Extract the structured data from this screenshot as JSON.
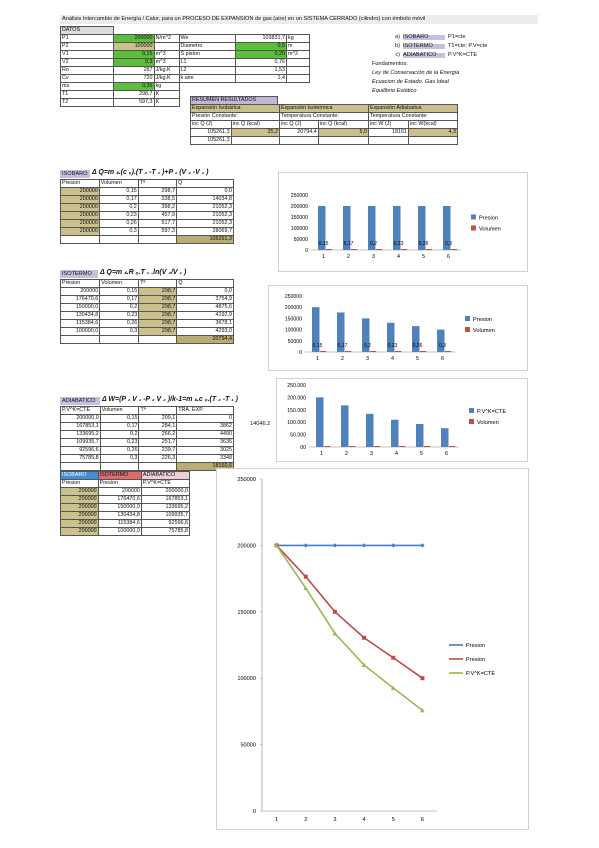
{
  "title": "Análisis Intercambio de Energía / Calor, para un PROCESO DE EXPANSION de gas (aire) en un SISTEMA CERRADO (cilindro) con émbolo móvil",
  "datos": {
    "label": "DATOS",
    "rows": [
      {
        "name": "P1",
        "value": "200000",
        "unit": "N/m^2",
        "name2": "We",
        "value2": "103831,7",
        "unit2": "kg"
      },
      {
        "name": "P2",
        "value": "100000",
        "unit": "",
        "name2": "Diametro",
        "value2": "0,5",
        "unit2": "m"
      },
      {
        "name": "V1",
        "value": "0,15",
        "unit": "m^3",
        "name2": "S piston",
        "value2": "0,20",
        "unit2": "m^2"
      },
      {
        "name": "V2",
        "value": "0,3",
        "unit": "m^3",
        "name2": "L1",
        "value2": "0,76",
        "unit2": ""
      },
      {
        "name": "Ro",
        "value": "287",
        "unit": "J/kg.K",
        "name2": "L2",
        "value2": "1,53",
        "unit2": ""
      },
      {
        "name": "Cv",
        "value": "720",
        "unit": "J/kg.K",
        "name2": "k aire",
        "value2": "1,4",
        "unit2": ""
      },
      {
        "name": "ms",
        "value": "0,35",
        "unit": "kg",
        "name2": "",
        "value2": "",
        "unit2": ""
      },
      {
        "name": "T1",
        "value": "298,7",
        "unit": "K",
        "name2": "",
        "value2": "",
        "unit2": ""
      },
      {
        "name": "T2",
        "value": "597,3",
        "unit": "K",
        "name2": "",
        "value2": "",
        "unit2": ""
      }
    ]
  },
  "legend_right": {
    "a_letter": "a)",
    "a_label": "ISOBARO",
    "a_desc": "P1=cte",
    "b_letter": "b)",
    "b_label": "ISOTERMO",
    "b_desc": "T1=cte; P.V=cte",
    "c_letter": "c)",
    "c_label": "ADIABATICO",
    "c_desc": "P.V^K=CTE",
    "fund": "Fundamentos:",
    "f1": "Ley de Conservación de la Energía",
    "f2": "Ecuacion de Estado, Gas Ideal",
    "f3": "Equilibrio Estático"
  },
  "resumen": {
    "label": "RESUMEN RESULTADOS",
    "h1": "Expansión Isobárica",
    "h2": "Expansión Isotermica",
    "h3": "Expansión Adiabatica",
    "s1": "Presión Constante:",
    "s2": "Temperatura Constante:",
    "s3": "Temperatura Constante:",
    "c1": "inc Q (J)",
    "c2": "inc Q (kcal)",
    "c3": "inc Q (J)",
    "c4": "inc Q (kcal)",
    "c5": "inc W (J)",
    "c6": "inc W(kcal)",
    "v1": "105261,3",
    "v2": "25,2",
    "v3": "20794,4",
    "v4": "5,0",
    "v5": "18161",
    "v6": "4,3",
    "extra": "105261,3"
  },
  "isobaro": {
    "tag": "ISOBARO",
    "formula": "Δ Q=m ₛ.(c ᵥ).(T ₂ -T ₁ )+P ₁ (V ₂ -V ₁ )",
    "headers": [
      "Presion",
      "Volumen",
      "Tª",
      "Q"
    ],
    "rows": [
      [
        "200000",
        "0,15",
        "298,7",
        "0,0"
      ],
      [
        "200000",
        "0,17",
        "338,5",
        "14034,8"
      ],
      [
        "200000",
        "0,2",
        "398,2",
        "21052,3"
      ],
      [
        "200000",
        "0,23",
        "457,9",
        "21052,3"
      ],
      [
        "200000",
        "0,26",
        "517,7",
        "21052,3"
      ],
      [
        "200000",
        "0,3",
        "597,3",
        "28069,7"
      ]
    ],
    "total": "105261,3"
  },
  "isotermo": {
    "tag": "ISOTERMO",
    "formula": "Δ Q=m ₛ.R ₒ.T ₁ .ln(V ₂/V ₁ )",
    "headers": [
      "Presion",
      "Volumen",
      "Tª",
      "Q"
    ],
    "rows": [
      [
        "200000",
        "0,15",
        "298,7",
        "0,0"
      ],
      [
        "176470,6",
        "0,17",
        "298,7",
        "3754,9"
      ],
      [
        "150000,0",
        "0,2",
        "298,7",
        "4875,6"
      ],
      [
        "130434,8",
        "0,23",
        "298,7",
        "4192,9"
      ],
      [
        "115384,6",
        "0,26",
        "298,7",
        "3678,1"
      ],
      [
        "100000,0",
        "0,3",
        "298,7",
        "4293,0"
      ]
    ],
    "total": "20794,4"
  },
  "adiabatico": {
    "tag": "ADIABATICO",
    "formula": "Δ W=(P ₁ V ₁ -P ₂ V ₂ )/k-1=m ₛ.c ᵥ.(T ₂ -T ₁ )",
    "headers": [
      "P.V^K=CTE",
      "Volumen",
      "Tª",
      "TRA. EXP."
    ],
    "rows": [
      [
        "200000,0",
        "0,15",
        "209,1",
        "0"
      ],
      [
        "167853,1",
        "0,17",
        "284,1",
        "3862"
      ],
      [
        "133695,2",
        "0,2",
        "266,2",
        "4490"
      ],
      [
        "109935,7",
        "0,23",
        "251,7",
        "3635"
      ],
      [
        "92596,6",
        "0,26",
        "239,7",
        "3025"
      ],
      [
        "75785,8",
        "0,3",
        "226,3",
        "3348"
      ]
    ],
    "total": "18160,6",
    "side": "14046,2"
  },
  "comparison": {
    "h1": "ISOBARO",
    "h2": "ISOTERMO",
    "h3": "ADIABATICO",
    "s1": "Presion",
    "s2": "Presion",
    "s3": "P.V^K=CTE",
    "rows": [
      [
        "200000",
        "200000",
        "200000,0"
      ],
      [
        "200000",
        "176470,6",
        "167853,1"
      ],
      [
        "200000",
        "150000,0",
        "133695,2"
      ],
      [
        "200000",
        "130434,8",
        "109935,7"
      ],
      [
        "200000",
        "115384,6",
        "92596,6"
      ],
      [
        "200000",
        "100000,0",
        "75785,8"
      ]
    ]
  },
  "chart_data": [
    {
      "type": "bar",
      "categories": [
        "1",
        "2",
        "3",
        "4",
        "5",
        "6"
      ],
      "series": [
        {
          "name": "Presion",
          "values": [
            200000,
            200000,
            200000,
            200000,
            200000,
            200000
          ]
        },
        {
          "name": "Volumen",
          "values": [
            0.15,
            0.17,
            0.2,
            0.23,
            0.26,
            0.3
          ]
        }
      ],
      "data_labels": [
        "0,15",
        "0,17",
        "0,2",
        "0,23",
        "0,26",
        "0,3"
      ],
      "yticks": [
        "250000",
        "200000",
        "150000",
        "100000",
        "50000",
        "0"
      ],
      "ylim": [
        0,
        250000
      ],
      "legend": "right"
    },
    {
      "type": "bar",
      "categories": [
        "1",
        "2",
        "3",
        "4",
        "5",
        "6"
      ],
      "series": [
        {
          "name": "Presion",
          "values": [
            200000,
            176470.6,
            150000,
            130434.8,
            115384.6,
            100000
          ]
        },
        {
          "name": "Volumen",
          "values": [
            0.15,
            0.17,
            0.2,
            0.23,
            0.26,
            0.3
          ]
        }
      ],
      "data_labels": [
        "0,15",
        "0,17",
        "0,2",
        "0,23",
        "0,26",
        "0,3"
      ],
      "yticks": [
        "250000",
        "200000",
        "150000",
        "100000",
        "50000",
        "0"
      ],
      "ylim": [
        0,
        250000
      ],
      "legend": "right"
    },
    {
      "type": "bar",
      "categories": [
        "1",
        "2",
        "3",
        "4",
        "5",
        "6"
      ],
      "series": [
        {
          "name": "P.V^K=CTE",
          "values": [
            200000,
            167853.1,
            133695.2,
            109935.7,
            92596.6,
            75785.8
          ]
        },
        {
          "name": "Volumen",
          "values": [
            0.15,
            0.17,
            0.2,
            0.23,
            0.26,
            0.3
          ]
        }
      ],
      "yticks": [
        "250.000",
        "200.000",
        "150.000",
        "100.000",
        "50.000",
        "00"
      ],
      "ylim": [
        0,
        250000
      ],
      "legend": "right"
    },
    {
      "type": "line",
      "categories": [
        "1",
        "2",
        "3",
        "4",
        "5",
        "6"
      ],
      "series": [
        {
          "name": "Presion",
          "values": [
            200000,
            200000,
            200000,
            200000,
            200000,
            200000
          ],
          "color": "#4a7ebb"
        },
        {
          "name": "Presion",
          "values": [
            200000,
            176470.6,
            150000,
            130434.8,
            115384.6,
            100000
          ],
          "color": "#be4b48"
        },
        {
          "name": "P.V^K=CTE",
          "values": [
            200000,
            167853.1,
            133695.2,
            109935.7,
            92596.6,
            75785.8
          ],
          "color": "#98b954"
        }
      ],
      "yticks": [
        "250000",
        "200000",
        "150000",
        "100000",
        "50000",
        "0"
      ],
      "ylim": [
        0,
        250000
      ],
      "legend": "right"
    }
  ]
}
